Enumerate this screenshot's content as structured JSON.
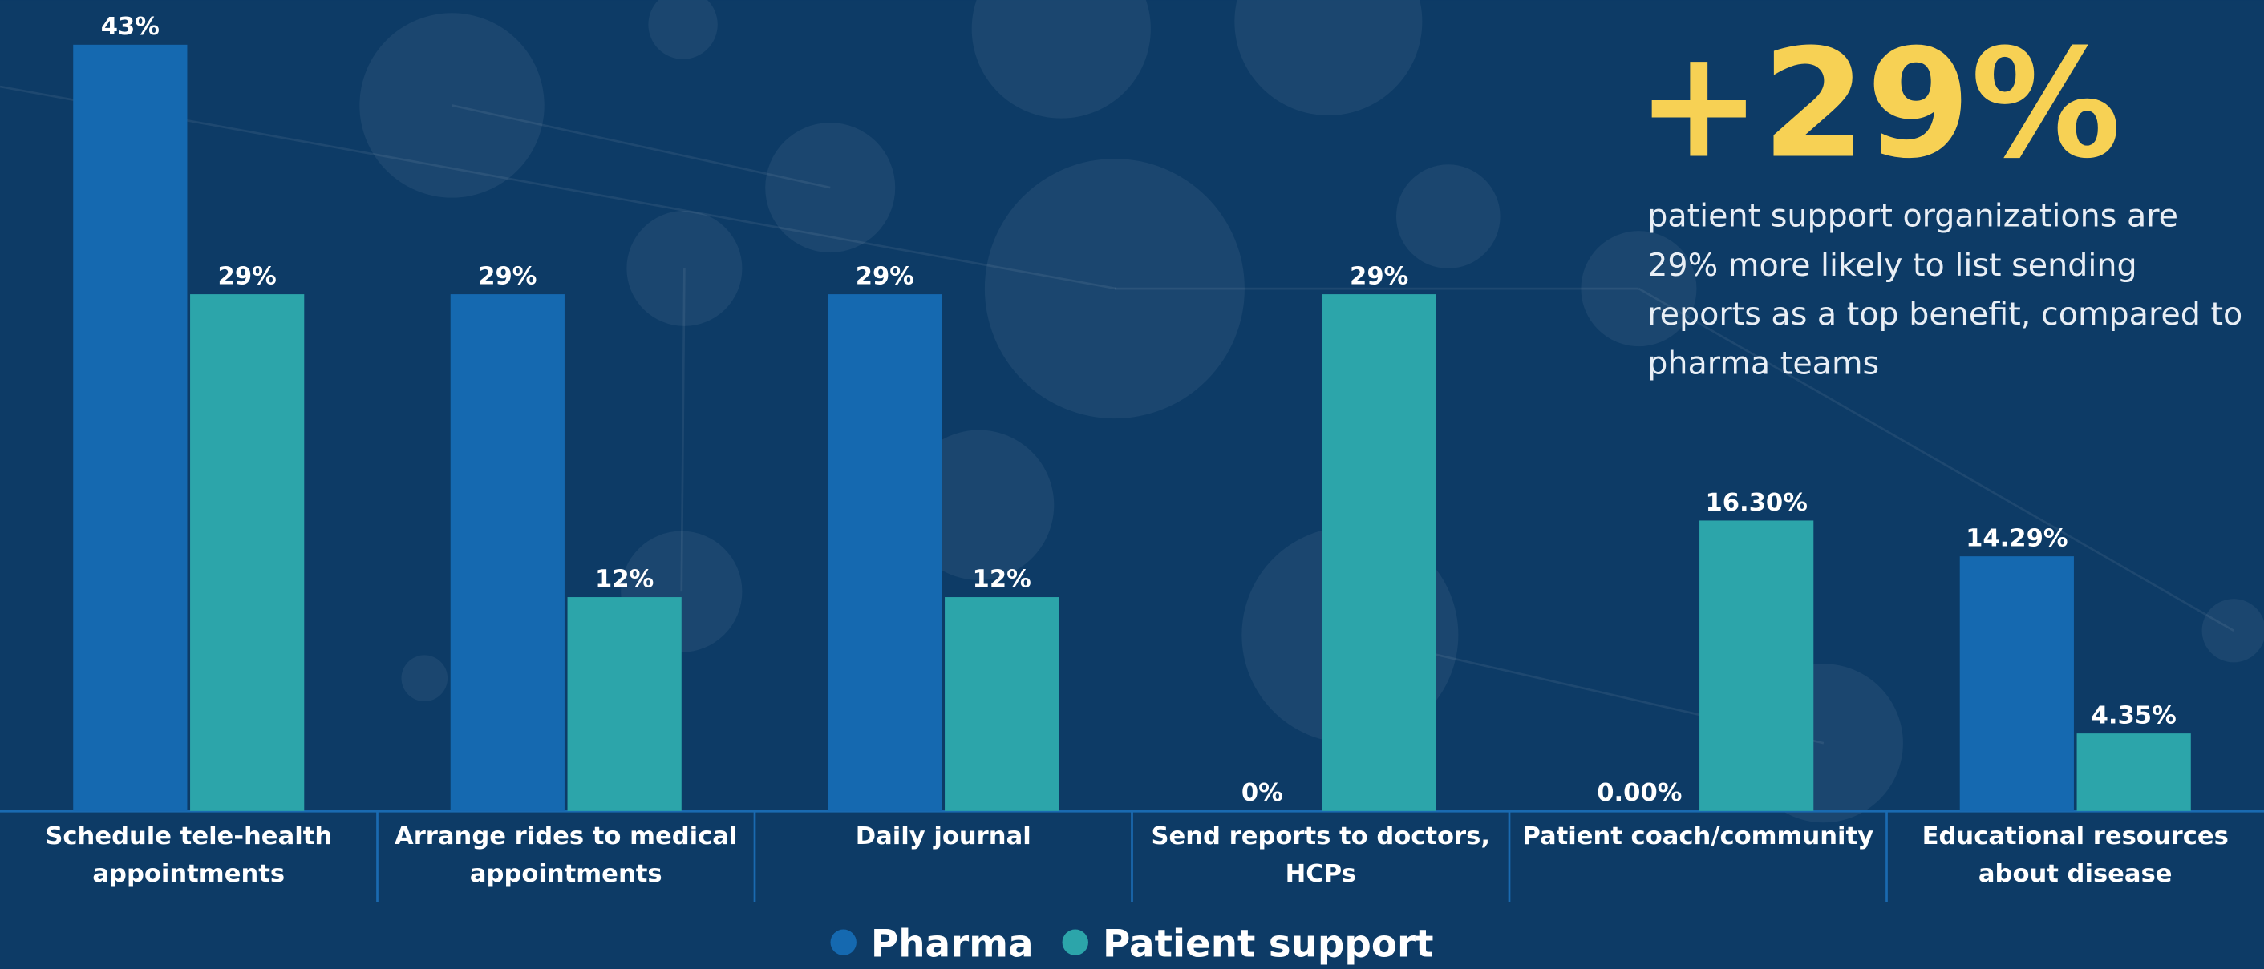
{
  "chart_data": {
    "type": "bar",
    "categories": [
      "Schedule tele-health appointments",
      "Arrange rides to medical appointments",
      "Daily journal",
      "Send reports to doctors, HCPs",
      "Patient coach/community",
      "Educational resources about disease"
    ],
    "series": [
      {
        "name": "Pharma",
        "color": "#1569b0",
        "values": [
          43,
          29,
          29,
          0,
          0,
          14.29
        ],
        "value_labels": [
          "43%",
          "29%",
          "29%",
          "0%",
          "0.00%",
          "14.29%"
        ]
      },
      {
        "name": "Patient support",
        "color": "#2ca5aa",
        "values": [
          29,
          12,
          12,
          29,
          16.3,
          4.35
        ],
        "value_labels": [
          "29%",
          "12%",
          "12%",
          "29%",
          "16.30%",
          "4.35%"
        ]
      }
    ],
    "ylim": [
      0,
      43
    ],
    "annotation": {
      "headline": "+29%",
      "text": "patient support organizations are 29% more likely to list sending reports as a top benefit, compared to pharma teams"
    }
  }
}
